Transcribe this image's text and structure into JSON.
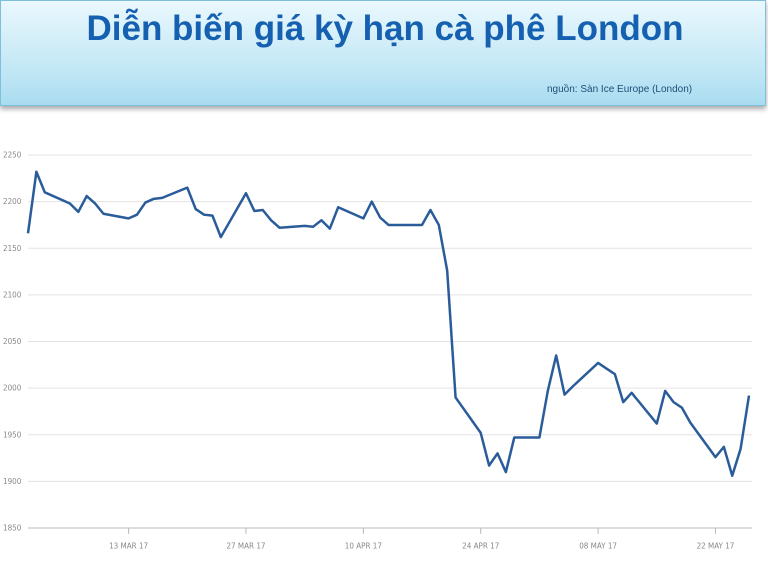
{
  "header": {
    "title": "Diễn biến giá kỳ hạn cà phê London",
    "source": "nguồn: Sàn Ice Europe (London)"
  },
  "chart_data": {
    "type": "line",
    "x": [
      "2017-03-01",
      "2017-03-02",
      "2017-03-03",
      "2017-03-06",
      "2017-03-07",
      "2017-03-08",
      "2017-03-09",
      "2017-03-10",
      "2017-03-13",
      "2017-03-14",
      "2017-03-15",
      "2017-03-16",
      "2017-03-17",
      "2017-03-20",
      "2017-03-21",
      "2017-03-22",
      "2017-03-23",
      "2017-03-24",
      "2017-03-27",
      "2017-03-28",
      "2017-03-29",
      "2017-03-30",
      "2017-03-31",
      "2017-04-03",
      "2017-04-04",
      "2017-04-05",
      "2017-04-06",
      "2017-04-07",
      "2017-04-10",
      "2017-04-11",
      "2017-04-12",
      "2017-04-13",
      "2017-04-17",
      "2017-04-18",
      "2017-04-19",
      "2017-04-20",
      "2017-04-21",
      "2017-04-24",
      "2017-04-25",
      "2017-04-26",
      "2017-04-27",
      "2017-04-28",
      "2017-05-01",
      "2017-05-02",
      "2017-05-03",
      "2017-05-04",
      "2017-05-05",
      "2017-05-08",
      "2017-05-09",
      "2017-05-10",
      "2017-05-11",
      "2017-05-12",
      "2017-05-15",
      "2017-05-16",
      "2017-05-17",
      "2017-05-18",
      "2017-05-19",
      "2017-05-22",
      "2017-05-23",
      "2017-05-24",
      "2017-05-25",
      "2017-05-26"
    ],
    "series": [
      {
        "color": "#2b5c9a",
        "values": [
          2166,
          2232,
          2210,
          2198,
          2189,
          2206,
          2198,
          2187,
          2182,
          2186,
          2199,
          2203,
          2204,
          2215,
          2192,
          2186,
          2185,
          2162,
          2209,
          2190,
          2191,
          2180,
          2172,
          2174,
          2173,
          2180,
          2171,
          2194,
          2182,
          2200,
          2183,
          2175,
          2175,
          2191,
          2175,
          2126,
          1990,
          1952,
          1917,
          1930,
          1910,
          1947,
          1947,
          1997,
          2035,
          1993,
          2002,
          2027,
          2021,
          2015,
          1985,
          1995,
          1962,
          1997,
          1985,
          1979,
          1963,
          1926,
          1937,
          1906,
          1935,
          1992
        ]
      }
    ],
    "xlim": [
      "2017-03-01",
      "2017-05-26"
    ],
    "xticks": [
      {
        "value": "2017-03-13",
        "label": "13 MAR 17"
      },
      {
        "value": "2017-03-27",
        "label": "27 MAR 17"
      },
      {
        "value": "2017-04-10",
        "label": "10 APR 17"
      },
      {
        "value": "2017-04-24",
        "label": "24 APR 17"
      },
      {
        "value": "2017-05-08",
        "label": "08 MAY 17"
      },
      {
        "value": "2017-05-22",
        "label": "22 MAY 17"
      }
    ],
    "ylim": [
      1850,
      2250
    ],
    "yticks": [
      1850,
      1900,
      1950,
      2000,
      2050,
      2100,
      2150,
      2200,
      2250
    ],
    "grid": true
  }
}
